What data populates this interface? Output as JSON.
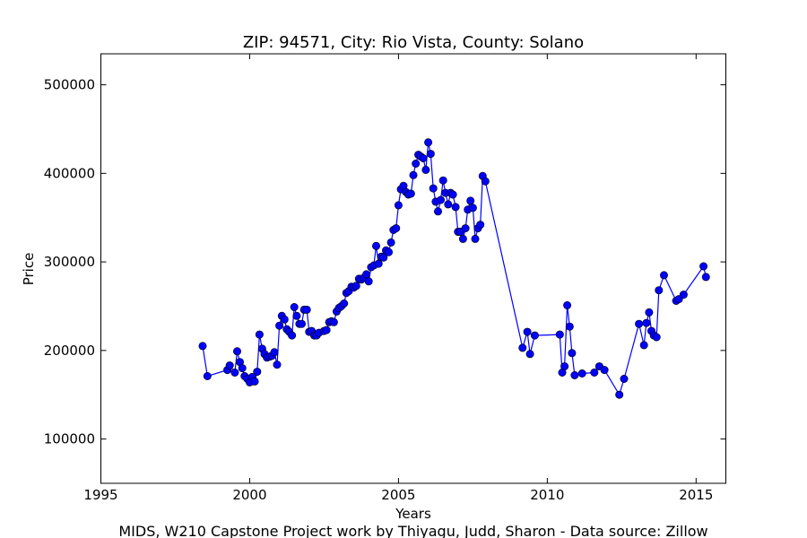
{
  "chart_data": {
    "type": "line",
    "title": "ZIP: 94571, City: Rio Vista, County: Solano",
    "xlabel": "Years",
    "ylabel": "Price",
    "footer": "MIDS, W210 Capstone Project work by Thiyagu, Judd, Sharon  -  Data source: Zillow",
    "xlim": [
      1995,
      2016
    ],
    "ylim": [
      50000,
      535000
    ],
    "x_ticks": [
      1995,
      2000,
      2005,
      2010,
      2015
    ],
    "y_ticks": [
      100000,
      200000,
      300000,
      400000,
      500000
    ],
    "x_tick_labels": [
      "1995",
      "2000",
      "2005",
      "2010",
      "2015"
    ],
    "y_tick_labels": [
      "100000",
      "200000",
      "300000",
      "400000",
      "500000"
    ],
    "grid": false,
    "series": [
      {
        "color": "#0000ff",
        "marker": "circle",
        "x": [
          1998.42,
          1998.58,
          1999.25,
          1999.33,
          1999.5,
          1999.58,
          1999.67,
          1999.75,
          1999.83,
          1999.92,
          2000.0,
          2000.08,
          2000.17,
          2000.25,
          2000.33,
          2000.42,
          2000.5,
          2000.58,
          2000.67,
          2000.75,
          2000.83,
          2000.92,
          2001.0,
          2001.08,
          2001.17,
          2001.25,
          2001.33,
          2001.42,
          2001.5,
          2001.58,
          2001.67,
          2001.75,
          2001.83,
          2001.92,
          2002.0,
          2002.08,
          2002.17,
          2002.25,
          2002.33,
          2002.5,
          2002.58,
          2002.67,
          2002.75,
          2002.83,
          2002.92,
          2003.0,
          2003.08,
          2003.17,
          2003.25,
          2003.33,
          2003.42,
          2003.5,
          2003.58,
          2003.67,
          2003.75,
          2003.83,
          2003.92,
          2004.0,
          2004.08,
          2004.17,
          2004.25,
          2004.33,
          2004.42,
          2004.5,
          2004.58,
          2004.67,
          2004.75,
          2004.83,
          2004.92,
          2005.0,
          2005.08,
          2005.17,
          2005.25,
          2005.33,
          2005.42,
          2005.5,
          2005.58,
          2005.67,
          2005.75,
          2005.83,
          2005.92,
          2006.0,
          2006.08,
          2006.17,
          2006.25,
          2006.33,
          2006.42,
          2006.5,
          2006.58,
          2006.67,
          2006.75,
          2006.83,
          2006.92,
          2007.0,
          2007.08,
          2007.17,
          2007.25,
          2007.33,
          2007.42,
          2007.5,
          2007.58,
          2007.67,
          2007.75,
          2007.83,
          2007.92,
          2009.17,
          2009.33,
          2009.42,
          2009.58,
          2010.42,
          2010.5,
          2010.58,
          2010.67,
          2010.75,
          2010.83,
          2010.92,
          2011.17,
          2011.58,
          2011.75,
          2011.92,
          2012.42,
          2012.58,
          2013.08,
          2013.25,
          2013.33,
          2013.42,
          2013.5,
          2013.58,
          2013.67,
          2013.75,
          2013.92,
          2014.33,
          2014.42,
          2014.58,
          2015.25,
          2015.33
        ],
        "y": [
          205000,
          171000,
          178000,
          183000,
          175000,
          199000,
          187000,
          180000,
          171000,
          168000,
          164000,
          170000,
          165000,
          176000,
          218000,
          202000,
          196000,
          192000,
          193000,
          194000,
          198000,
          184000,
          228000,
          239000,
          235000,
          224000,
          221000,
          217000,
          249000,
          239000,
          230000,
          230000,
          246000,
          246000,
          221000,
          222000,
          217000,
          217000,
          220000,
          222000,
          223000,
          232000,
          233000,
          232000,
          244000,
          248000,
          250000,
          253000,
          265000,
          267000,
          272000,
          271000,
          273000,
          281000,
          280000,
          282000,
          286000,
          278000,
          294000,
          296000,
          318000,
          298000,
          306000,
          305000,
          313000,
          311000,
          322000,
          336000,
          338000,
          364000,
          382000,
          386000,
          379000,
          376000,
          377000,
          398000,
          411000,
          421000,
          419000,
          417000,
          404000,
          435000,
          422000,
          383000,
          368000,
          357000,
          370000,
          392000,
          378000,
          365000,
          378000,
          376000,
          362000,
          334000,
          334000,
          326000,
          338000,
          359000,
          369000,
          361000,
          326000,
          338000,
          342000,
          397000,
          391000,
          203000,
          221000,
          196000,
          217000,
          218000,
          175000,
          182000,
          251000,
          227000,
          197000,
          172000,
          174000,
          175000,
          182000,
          178000,
          150000,
          168000,
          230000,
          206000,
          231000,
          243000,
          222000,
          217000,
          215000,
          268000,
          285000,
          256000,
          258000,
          263000,
          295000,
          283000
        ]
      }
    ]
  }
}
